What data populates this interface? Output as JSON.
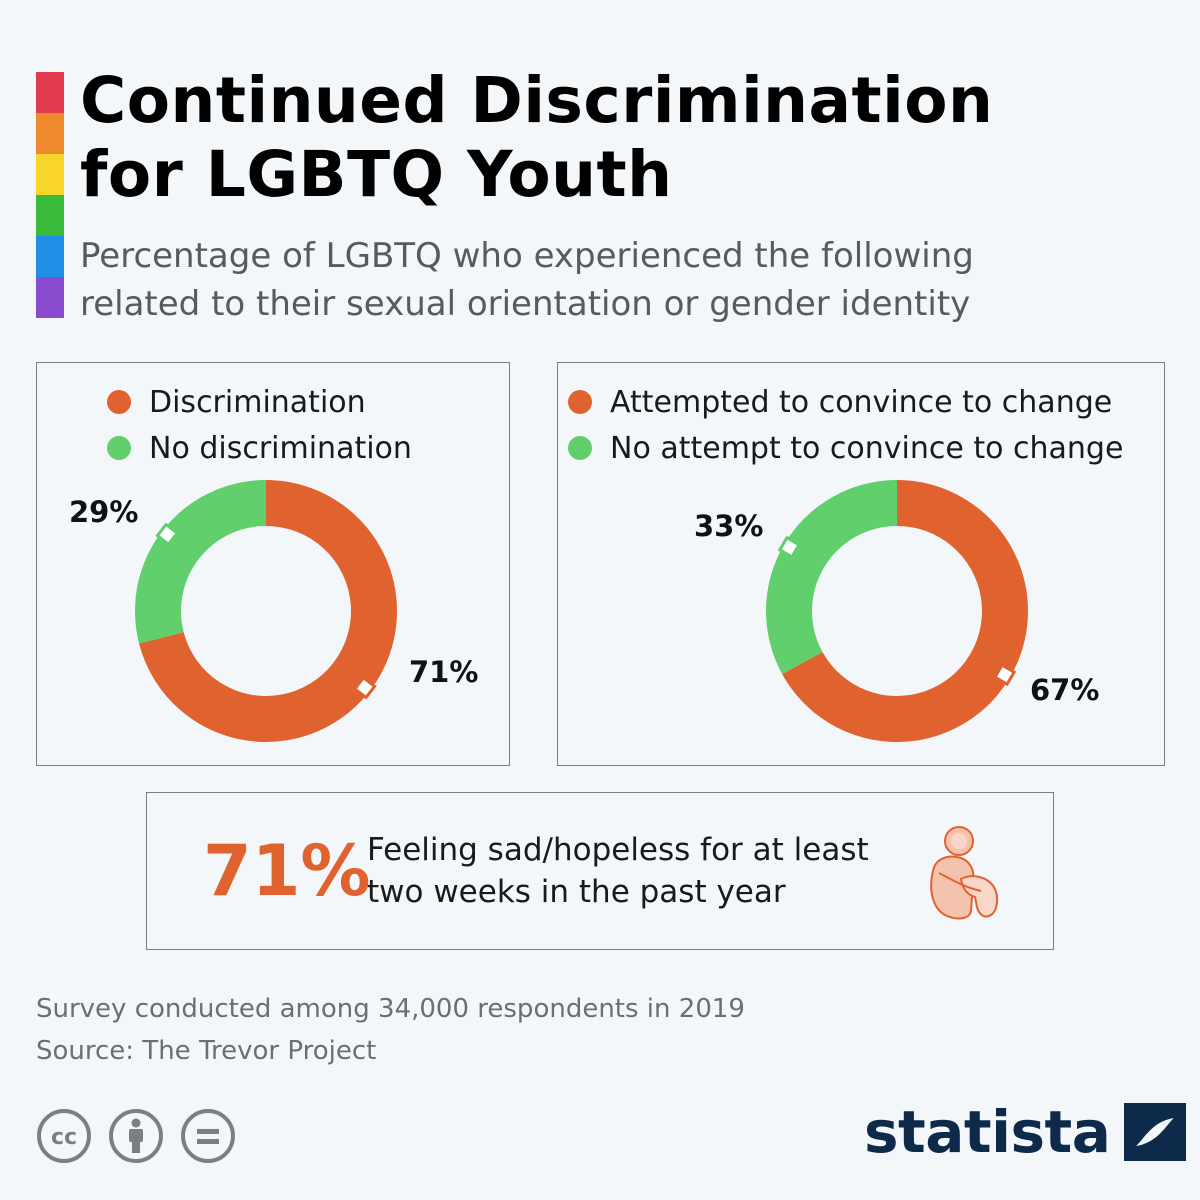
{
  "colors": {
    "orange": "#e0622f",
    "green": "#60cf6c",
    "navy": "#0d2a4a",
    "rainbow": [
      "#e23a4e",
      "#f08a2f",
      "#f7d52a",
      "#3bbb3a",
      "#1e8ee6",
      "#8a4ccf"
    ]
  },
  "header": {
    "title_line1": "Continued Discrimination",
    "title_line2": "for LGBTQ Youth",
    "subtitle_line1": "Percentage of LGBTQ who experienced the following",
    "subtitle_line2": "related to their sexual orientation or gender identity"
  },
  "chart_data": [
    {
      "type": "pie",
      "title": "",
      "labels": [
        "Discrimination",
        "No discrimination"
      ],
      "values": [
        71,
        29
      ],
      "value_labels": [
        "71%",
        "29%"
      ],
      "colors": [
        "#e0622f",
        "#60cf6c"
      ],
      "legend": "top-left"
    },
    {
      "type": "pie",
      "title": "",
      "labels": [
        "Attempted to convince to change",
        "No attempt to convince to change"
      ],
      "values": [
        67,
        33
      ],
      "value_labels": [
        "67%",
        "33%"
      ],
      "colors": [
        "#e0622f",
        "#60cf6c"
      ],
      "legend": "top-left"
    }
  ],
  "callout": {
    "value": "71%",
    "text_line1": "Feeling sad/hopeless for at least",
    "text_line2": "two weeks in the past year",
    "icon": "person-sitting-icon"
  },
  "footer": {
    "note": "Survey conducted among 34,000 respondents in 2019",
    "source": "Source: The Trevor Project",
    "license_icons": [
      "cc-icon",
      "attribution-icon",
      "no-derivatives-icon"
    ],
    "cc_text": "cc",
    "brand": "statista"
  }
}
